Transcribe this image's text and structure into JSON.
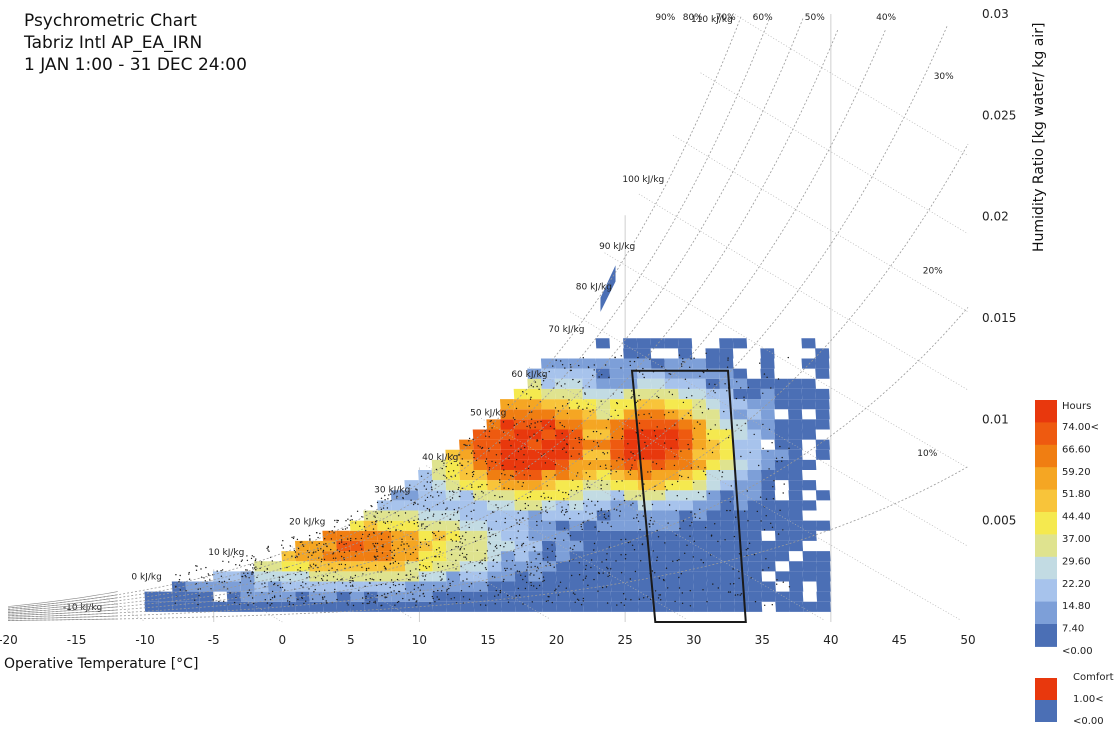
{
  "title": {
    "line1": "Psychrometric Chart",
    "line2": "Tabriz Intl AP_EA_IRN",
    "line3": "1 JAN 1:00 - 31 DEC 24:00"
  },
  "chart_data": {
    "type": "heatmap",
    "xlabel": "Operative Temperature [°C]",
    "ylabel": "Humidity Ratio [kg water/ kg air]",
    "xlim": [
      -20,
      50
    ],
    "ylim": [
      0,
      0.03
    ],
    "x_ticks": [
      "-20",
      "-15",
      "-10",
      "-5",
      "0",
      "5",
      "10",
      "15",
      "20",
      "25",
      "30",
      "35",
      "40",
      "45",
      "50"
    ],
    "y_ticks": [
      "0.005",
      "0.01",
      "0.015",
      "0.02",
      "0.025",
      "0.03"
    ],
    "y_tick_values": [
      0.005,
      0.01,
      0.015,
      0.02,
      0.025,
      0.03
    ],
    "rh_labels": [
      "90%",
      "80%",
      "70%",
      "60%",
      "50%",
      "40%",
      "30%",
      "20%",
      "10%"
    ],
    "rh_values": [
      0.9,
      0.8,
      0.7,
      0.6,
      0.5,
      0.4,
      0.3,
      0.2,
      0.1
    ],
    "enthalpy_labels": [
      "-10 kJ/kg",
      "0 kJ/kg",
      "10 kJ/kg",
      "20 kJ/kg",
      "30 kJ/kg",
      "40 kJ/kg",
      "50 kJ/kg",
      "60 kJ/kg",
      "70 kJ/kg",
      "80 kJ/kg",
      "90 kJ/kg",
      "100 kJ/kg",
      "110 kJ/kg"
    ],
    "enthalpy_values": [
      -10,
      0,
      10,
      20,
      30,
      40,
      50,
      60,
      70,
      80,
      90,
      100,
      110
    ],
    "comfort_polygon": [
      [
        25.5,
        0.0124
      ],
      [
        32.5,
        0.0124
      ],
      [
        33.8,
        0.0
      ],
      [
        27.2,
        0.0
      ]
    ],
    "hours_legend": {
      "title": "Hours",
      "labels": [
        "74.00<",
        "66.60",
        "59.20",
        "51.80",
        "44.40",
        "37.00",
        "29.60",
        "22.20",
        "14.80",
        "7.40",
        "<0.00"
      ],
      "colors": [
        "#e8380d",
        "#ee5a10",
        "#f07e12",
        "#f5a623",
        "#f8c43a",
        "#f5e94f",
        "#dfe38f",
        "#c2dbe3",
        "#a7c3ec",
        "#7d9fd8",
        "#4b6fb5"
      ]
    },
    "comfort_legend": {
      "title": "Comfort",
      "labels": [
        "1.00<",
        "<0.00"
      ],
      "colors": [
        "#e8380d",
        "#4b6fb5"
      ]
    },
    "hours_bins": {
      "temperature_bins": [
        -10,
        -9,
        -8,
        -7,
        -6,
        -5,
        -4,
        -3,
        -2,
        -1,
        0,
        1,
        2,
        3,
        4,
        5,
        6,
        7,
        8,
        9,
        10,
        11,
        12,
        13,
        14,
        15,
        16,
        17,
        18,
        19,
        20,
        21,
        22,
        23,
        24,
        25,
        26,
        27,
        28,
        29,
        30,
        31,
        32,
        33,
        34,
        35,
        36,
        37,
        38,
        39
      ],
      "humidity_bins": [
        0.0005,
        0.001,
        0.0015,
        0.002,
        0.0025,
        0.003,
        0.0035,
        0.004,
        0.0045,
        0.005,
        0.0055,
        0.006,
        0.0065,
        0.007,
        0.0075,
        0.008,
        0.0085,
        0.009,
        0.0095,
        0.01,
        0.0105,
        0.011,
        0.0115,
        0.012,
        0.0125,
        0.013,
        0.0135
      ],
      "peak_hours_at": [
        17.5,
        0.0085
      ],
      "secondary_peak_at": [
        26.5,
        0.0085
      ]
    }
  }
}
